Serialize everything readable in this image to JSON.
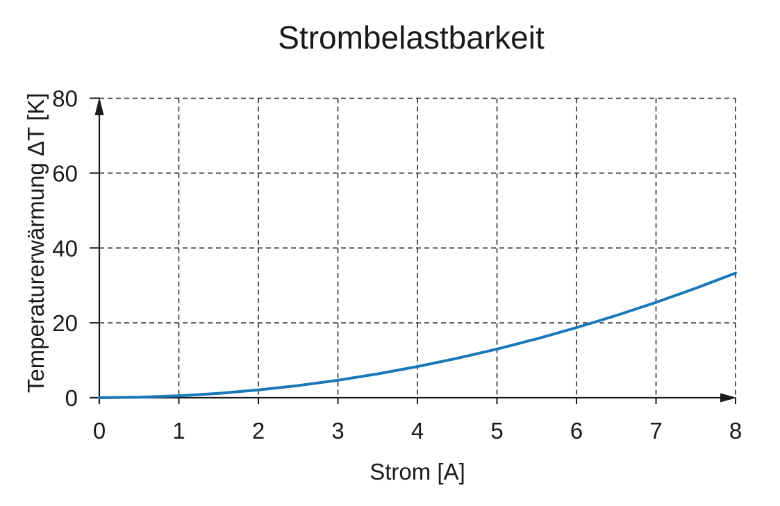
{
  "page": {
    "background": "#ffffff"
  },
  "chart_data": {
    "type": "line",
    "title": "Strombelastbarkeit",
    "xlabel": "Strom [A]",
    "ylabel": "Temperaturerwärmung ΔT [K]",
    "xlim": [
      0,
      8
    ],
    "ylim": [
      0,
      80
    ],
    "x_ticks": [
      0,
      1,
      2,
      3,
      4,
      5,
      6,
      7,
      8
    ],
    "y_ticks": [
      0,
      20,
      40,
      60,
      80
    ],
    "grid": true,
    "grid_style": "dashed",
    "legend": false,
    "arrow_axes": true,
    "axis_color": "#1a1a1a",
    "grid_color": "#1a1a1a",
    "series": [
      {
        "name": "Temperaturerwärmung",
        "color": "#1878b8",
        "x": [
          0,
          0.5,
          1,
          1.5,
          2,
          2.5,
          3,
          3.5,
          4,
          4.5,
          5,
          5.5,
          6,
          6.5,
          7,
          7.5,
          8
        ],
        "y": [
          0,
          0.13,
          0.52,
          1.17,
          2.08,
          3.25,
          4.68,
          6.37,
          8.32,
          10.53,
          13.0,
          15.73,
          18.72,
          21.97,
          25.48,
          29.25,
          33.28
        ]
      }
    ]
  }
}
